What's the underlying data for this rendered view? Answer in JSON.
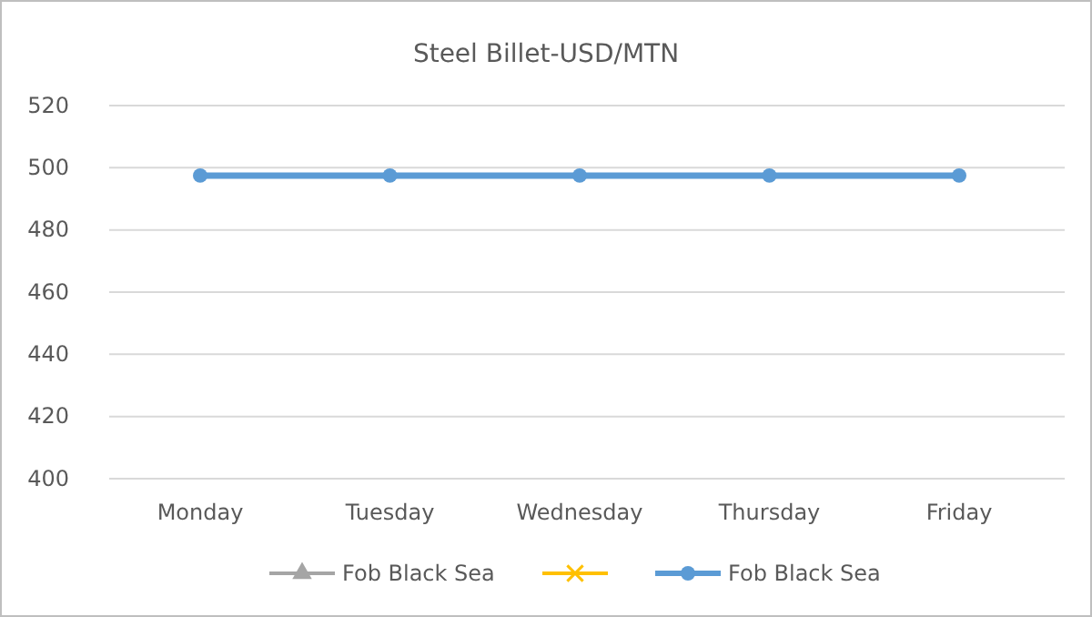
{
  "chart_data": {
    "type": "line",
    "title": "Steel Billet-USD/MTN",
    "categories": [
      "Monday",
      "Tuesday",
      "Wednesday",
      "Thursday",
      "Friday"
    ],
    "series": [
      {
        "name": "Fob Black Sea",
        "color": "#a5a5a5",
        "marker": "triangle",
        "values": [
          null,
          null,
          null,
          null,
          null
        ]
      },
      {
        "color": "#ffc000",
        "marker": "cross",
        "values": [
          null,
          null,
          null,
          null,
          null
        ]
      },
      {
        "name": "Fob Black Sea",
        "color": "#5b9bd5",
        "marker": "circle",
        "values": [
          497.5,
          497.5,
          497.5,
          497.5,
          497.5
        ]
      }
    ],
    "ylim": [
      400,
      520
    ],
    "yticks": [
      400,
      420,
      440,
      460,
      480,
      500,
      520
    ],
    "grid": "y",
    "legend": "bottom",
    "line_style": "solid"
  }
}
